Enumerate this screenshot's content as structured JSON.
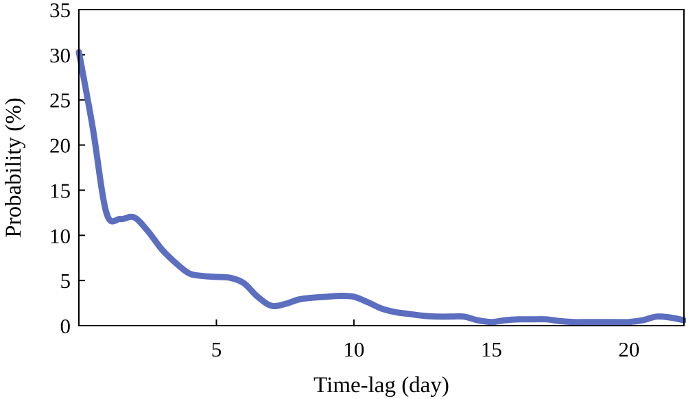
{
  "chart_data": {
    "type": "line",
    "title": "",
    "xlabel": "Time-lag (day)",
    "ylabel": "Probability (%)",
    "xlim": [
      0,
      22
    ],
    "ylim": [
      0,
      35
    ],
    "xticks": [
      5,
      10,
      15,
      20
    ],
    "yticks": [
      0,
      5,
      10,
      15,
      20,
      25,
      30,
      35
    ],
    "grid": false,
    "legend": "none",
    "series": [
      {
        "color": "#5b6ec0",
        "x": [
          0,
          0.5,
          1,
          1.5,
          2,
          2.5,
          3,
          3.5,
          4,
          4.5,
          5,
          5.5,
          6,
          6.5,
          7,
          7.5,
          8,
          8.5,
          9,
          9.5,
          10,
          10.5,
          11,
          11.5,
          12,
          12.5,
          13,
          13.5,
          14,
          14.5,
          15,
          15.5,
          16,
          16.5,
          17,
          17.5,
          18,
          18.5,
          19,
          19.5,
          20,
          20.5,
          21,
          21.5,
          22
        ],
        "y": [
          30.3,
          22,
          12.5,
          11.8,
          12,
          10.5,
          8.5,
          7,
          5.8,
          5.5,
          5.4,
          5.3,
          4.7,
          3.2,
          2.2,
          2.4,
          2.9,
          3.1,
          3.2,
          3.3,
          3.2,
          2.6,
          1.9,
          1.5,
          1.3,
          1.1,
          1.0,
          1.0,
          1.0,
          0.6,
          0.4,
          0.6,
          0.7,
          0.7,
          0.7,
          0.5,
          0.4,
          0.4,
          0.4,
          0.4,
          0.4,
          0.6,
          1.0,
          0.9,
          0.6
        ]
      }
    ]
  }
}
